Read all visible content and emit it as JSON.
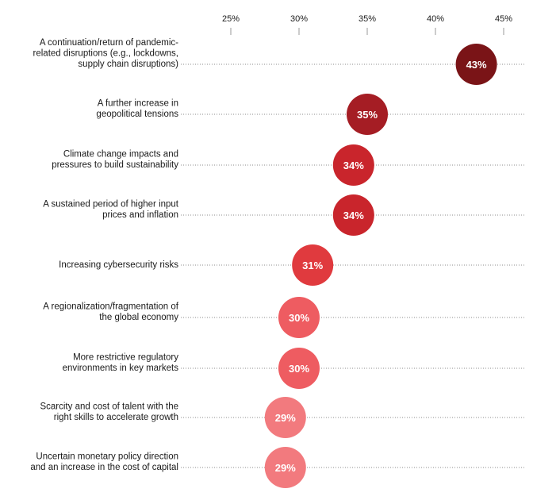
{
  "chart_data": {
    "type": "scatter",
    "x_ticks": [
      25,
      30,
      35,
      40,
      45
    ],
    "x_tick_labels": [
      "25%",
      "30%",
      "35%",
      "40%",
      "45%"
    ],
    "xlim": [
      25,
      45
    ],
    "grid": "dotted row guides",
    "categories": [
      [
        "A continuation/return of pandemic-",
        "related disruptions (e.g., lockdowns,",
        "supply chain disruptions)"
      ],
      [
        "A further increase in",
        "geopolitical tensions"
      ],
      [
        "Climate change impacts and",
        "pressures to build sustainability"
      ],
      [
        "A sustained period of higher input",
        "prices and inflation"
      ],
      [
        "Increasing cybersecurity risks"
      ],
      [
        "A regionalization/fragmentation of",
        "the global economy"
      ],
      [
        "More restrictive regulatory",
        "environments in key markets"
      ],
      [
        "Scarcity and cost of talent with the",
        "right skills to accelerate growth"
      ],
      [
        "Uncertain monetary policy direction",
        "and an increase in the cost of capital"
      ]
    ],
    "values": [
      43,
      35,
      34,
      34,
      31,
      30,
      30,
      29,
      29
    ],
    "value_labels": [
      "43%",
      "35%",
      "34%",
      "34%",
      "31%",
      "30%",
      "30%",
      "29%",
      "29%"
    ],
    "colors": [
      "#7a1417",
      "#a51d24",
      "#c9252c",
      "#c9252c",
      "#e03a3e",
      "#ee5c61",
      "#ee5c61",
      "#f27a7e",
      "#f27a7e"
    ]
  }
}
